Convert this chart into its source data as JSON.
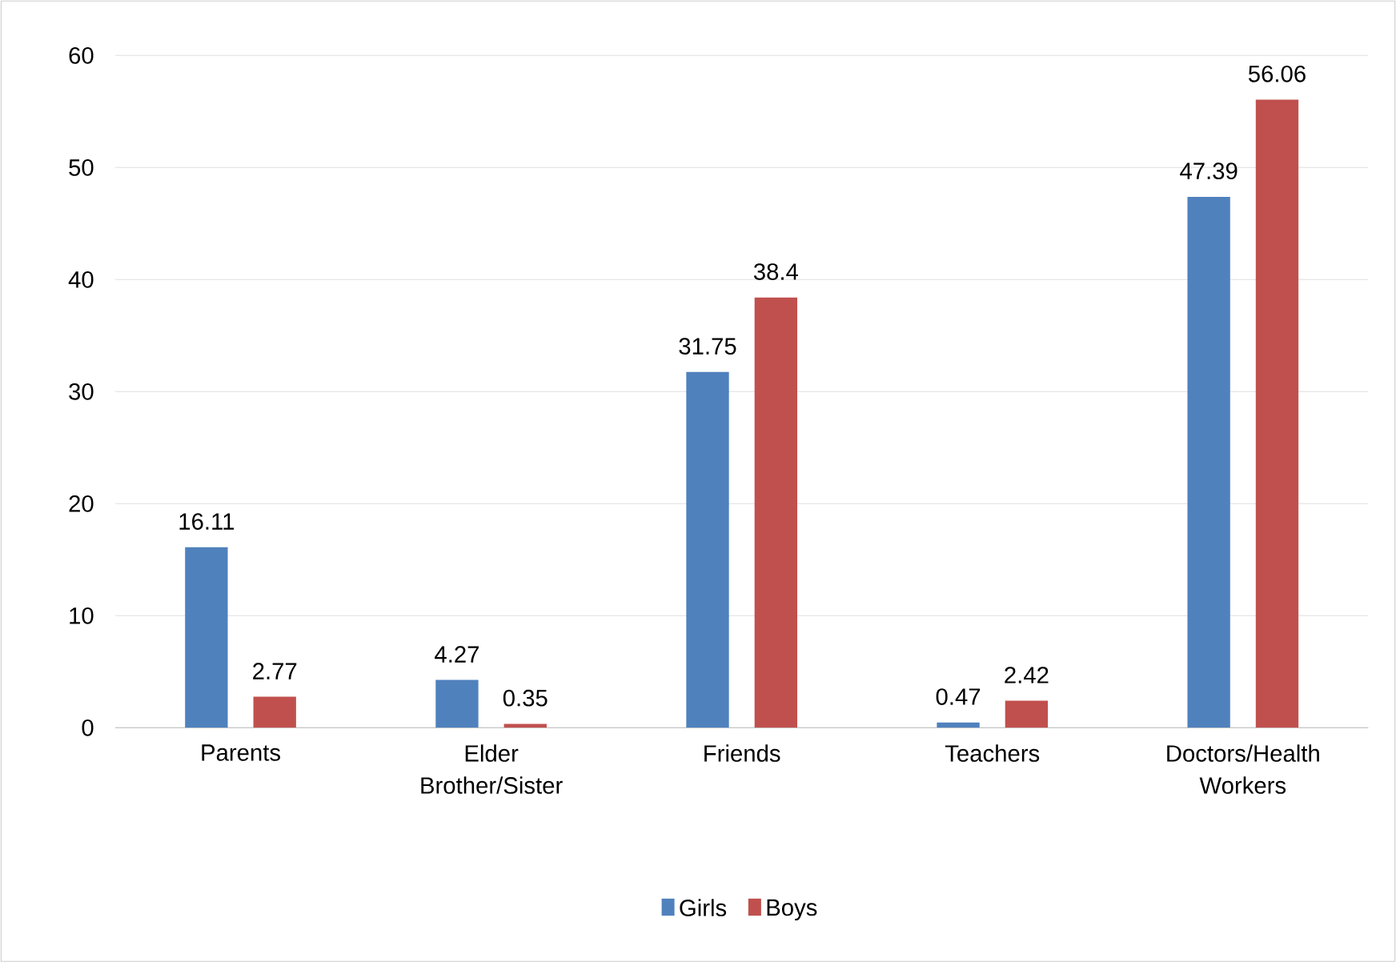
{
  "chart_data": {
    "type": "bar",
    "categories": [
      "Parents",
      "Elder Brother/Sister",
      "Friends",
      "Teachers",
      "Doctors/Health Workers"
    ],
    "series": [
      {
        "name": "Girls",
        "color": "#4f81bd",
        "values": [
          16.11,
          4.27,
          31.75,
          0.47,
          47.39
        ]
      },
      {
        "name": "Boys",
        "color": "#c0504d",
        "values": [
          2.77,
          0.35,
          38.4,
          2.42,
          56.06
        ]
      }
    ],
    "ylim": [
      0,
      60
    ],
    "yticks": [
      0,
      10,
      20,
      30,
      40,
      50,
      60
    ],
    "grid": "y",
    "legend": "bottom",
    "data_labels": true
  }
}
